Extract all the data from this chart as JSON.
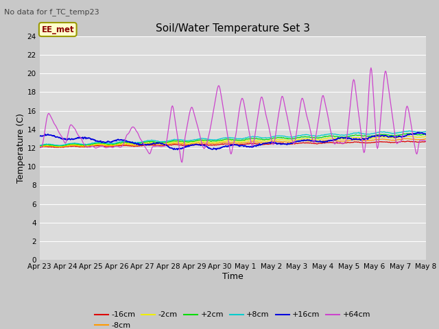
{
  "title": "Soil/Water Temperature Set 3",
  "subtitle": "No data for f_TC_temp23",
  "xlabel": "Time",
  "ylabel": "Temperature (C)",
  "annotation": "EE_met",
  "ylim": [
    0,
    24
  ],
  "yticks": [
    0,
    2,
    4,
    6,
    8,
    10,
    12,
    14,
    16,
    18,
    20,
    22,
    24
  ],
  "fig_bg": "#d8d8d8",
  "plot_bg": "#e0e0e0",
  "series_colors": {
    "-16cm": "#dd0000",
    "-8cm": "#ff9900",
    "-2cm": "#eeee00",
    "+2cm": "#00dd00",
    "+8cm": "#00cccc",
    "+16cm": "#0000dd",
    "+64cm": "#cc44cc"
  },
  "xtick_labels": [
    "Apr 23",
    "Apr 24",
    "Apr 25",
    "Apr 26",
    "Apr 27",
    "Apr 28",
    "Apr 29",
    "Apr 30",
    "May 1",
    "May 2",
    "May 3",
    "May 4",
    "May 5",
    "May 6",
    "May 7",
    "May 8"
  ]
}
